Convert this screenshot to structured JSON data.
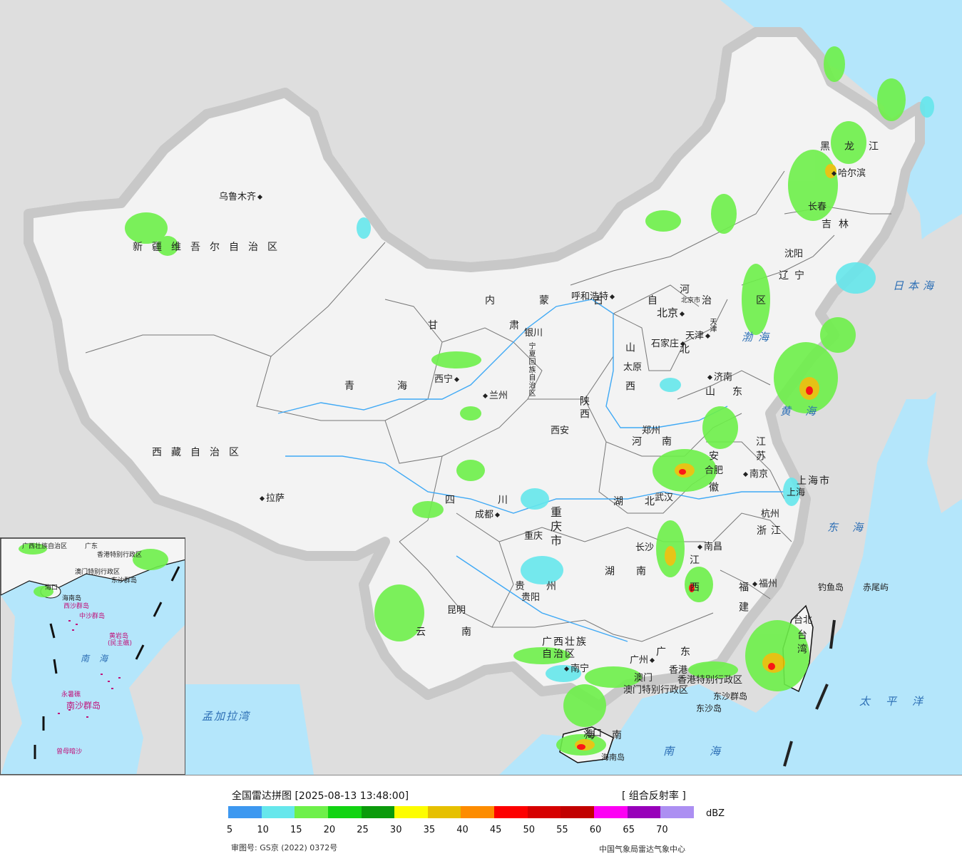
{
  "map": {
    "colors": {
      "sea": "#b4e6fb",
      "land_china": "#f2f2f2",
      "land_other": "#dedede",
      "border": "#111111",
      "river": "#3fa9f5"
    },
    "provinces": [
      "新疆维吾尔自治区",
      "西藏自治区",
      "青海",
      "甘肃",
      "内蒙古自治区",
      "四川",
      "云南",
      "重庆市",
      "贵州",
      "广西壮族自治区",
      "广东",
      "湖南",
      "湖北",
      "河南",
      "陕西",
      "山西",
      "河北",
      "山东",
      "江苏",
      "安徽",
      "浙江",
      "江西",
      "福建",
      "台湾",
      "海南",
      "辽宁",
      "吉林",
      "黑龙江",
      "宁夏回族自治区",
      "北京市",
      "天津",
      "上海市",
      "香港特别行政区",
      "澳门特别行政区"
    ],
    "cities": [
      "乌鲁木齐",
      "拉萨",
      "西宁",
      "兰州",
      "银川",
      "呼和浩特",
      "北京",
      "天津",
      "石家庄",
      "太原",
      "济南",
      "郑州",
      "西安",
      "成都",
      "重庆",
      "贵阳",
      "昆明",
      "南宁",
      "长沙",
      "武汉",
      "合肥",
      "南京",
      "上海",
      "杭州",
      "南昌",
      "福州",
      "台北",
      "广州",
      "香港",
      "澳门",
      "海口",
      "哈尔滨",
      "长春",
      "沈阳"
    ],
    "seas": [
      "日本海",
      "渤海",
      "黄海",
      "东海",
      "太平洋",
      "南海",
      "孟加拉湾"
    ],
    "islands": [
      "钓鱼岛",
      "赤尾屿",
      "东沙群岛",
      "东沙岛",
      "海南岛"
    ],
    "inset": {
      "labels": [
        "广西壮族自治区",
        "广东",
        "香港特别行政区",
        "澳门特别行政区",
        "东沙群岛",
        "海口",
        "海南岛",
        "西沙群岛",
        "中沙群岛",
        "黄岩岛",
        "(民主礁)",
        "南海",
        "永暑礁",
        "南沙群岛",
        "曾母暗沙"
      ]
    }
  },
  "legend": {
    "title": "全国雷达拼图 [2025-08-13 13:48:00]",
    "unit_label": "[ 组合反射率 ]",
    "dbz": "dBZ",
    "colors": [
      "#3d98f0",
      "#66e7ec",
      "#6ef04a",
      "#12d412",
      "#0b9b0b",
      "#fdfd00",
      "#e6c000",
      "#fd8c00",
      "#fd0000",
      "#d60000",
      "#c20000",
      "#fd00f4",
      "#9800ba",
      "#ac8ff2"
    ],
    "ticks": [
      "5",
      "10",
      "15",
      "20",
      "25",
      "30",
      "35",
      "40",
      "45",
      "50",
      "55",
      "60",
      "65",
      "70"
    ]
  },
  "footer": {
    "review_no": "审图号: GS京 (2022) 0372号",
    "org": "中国气象局雷达气象中心"
  }
}
